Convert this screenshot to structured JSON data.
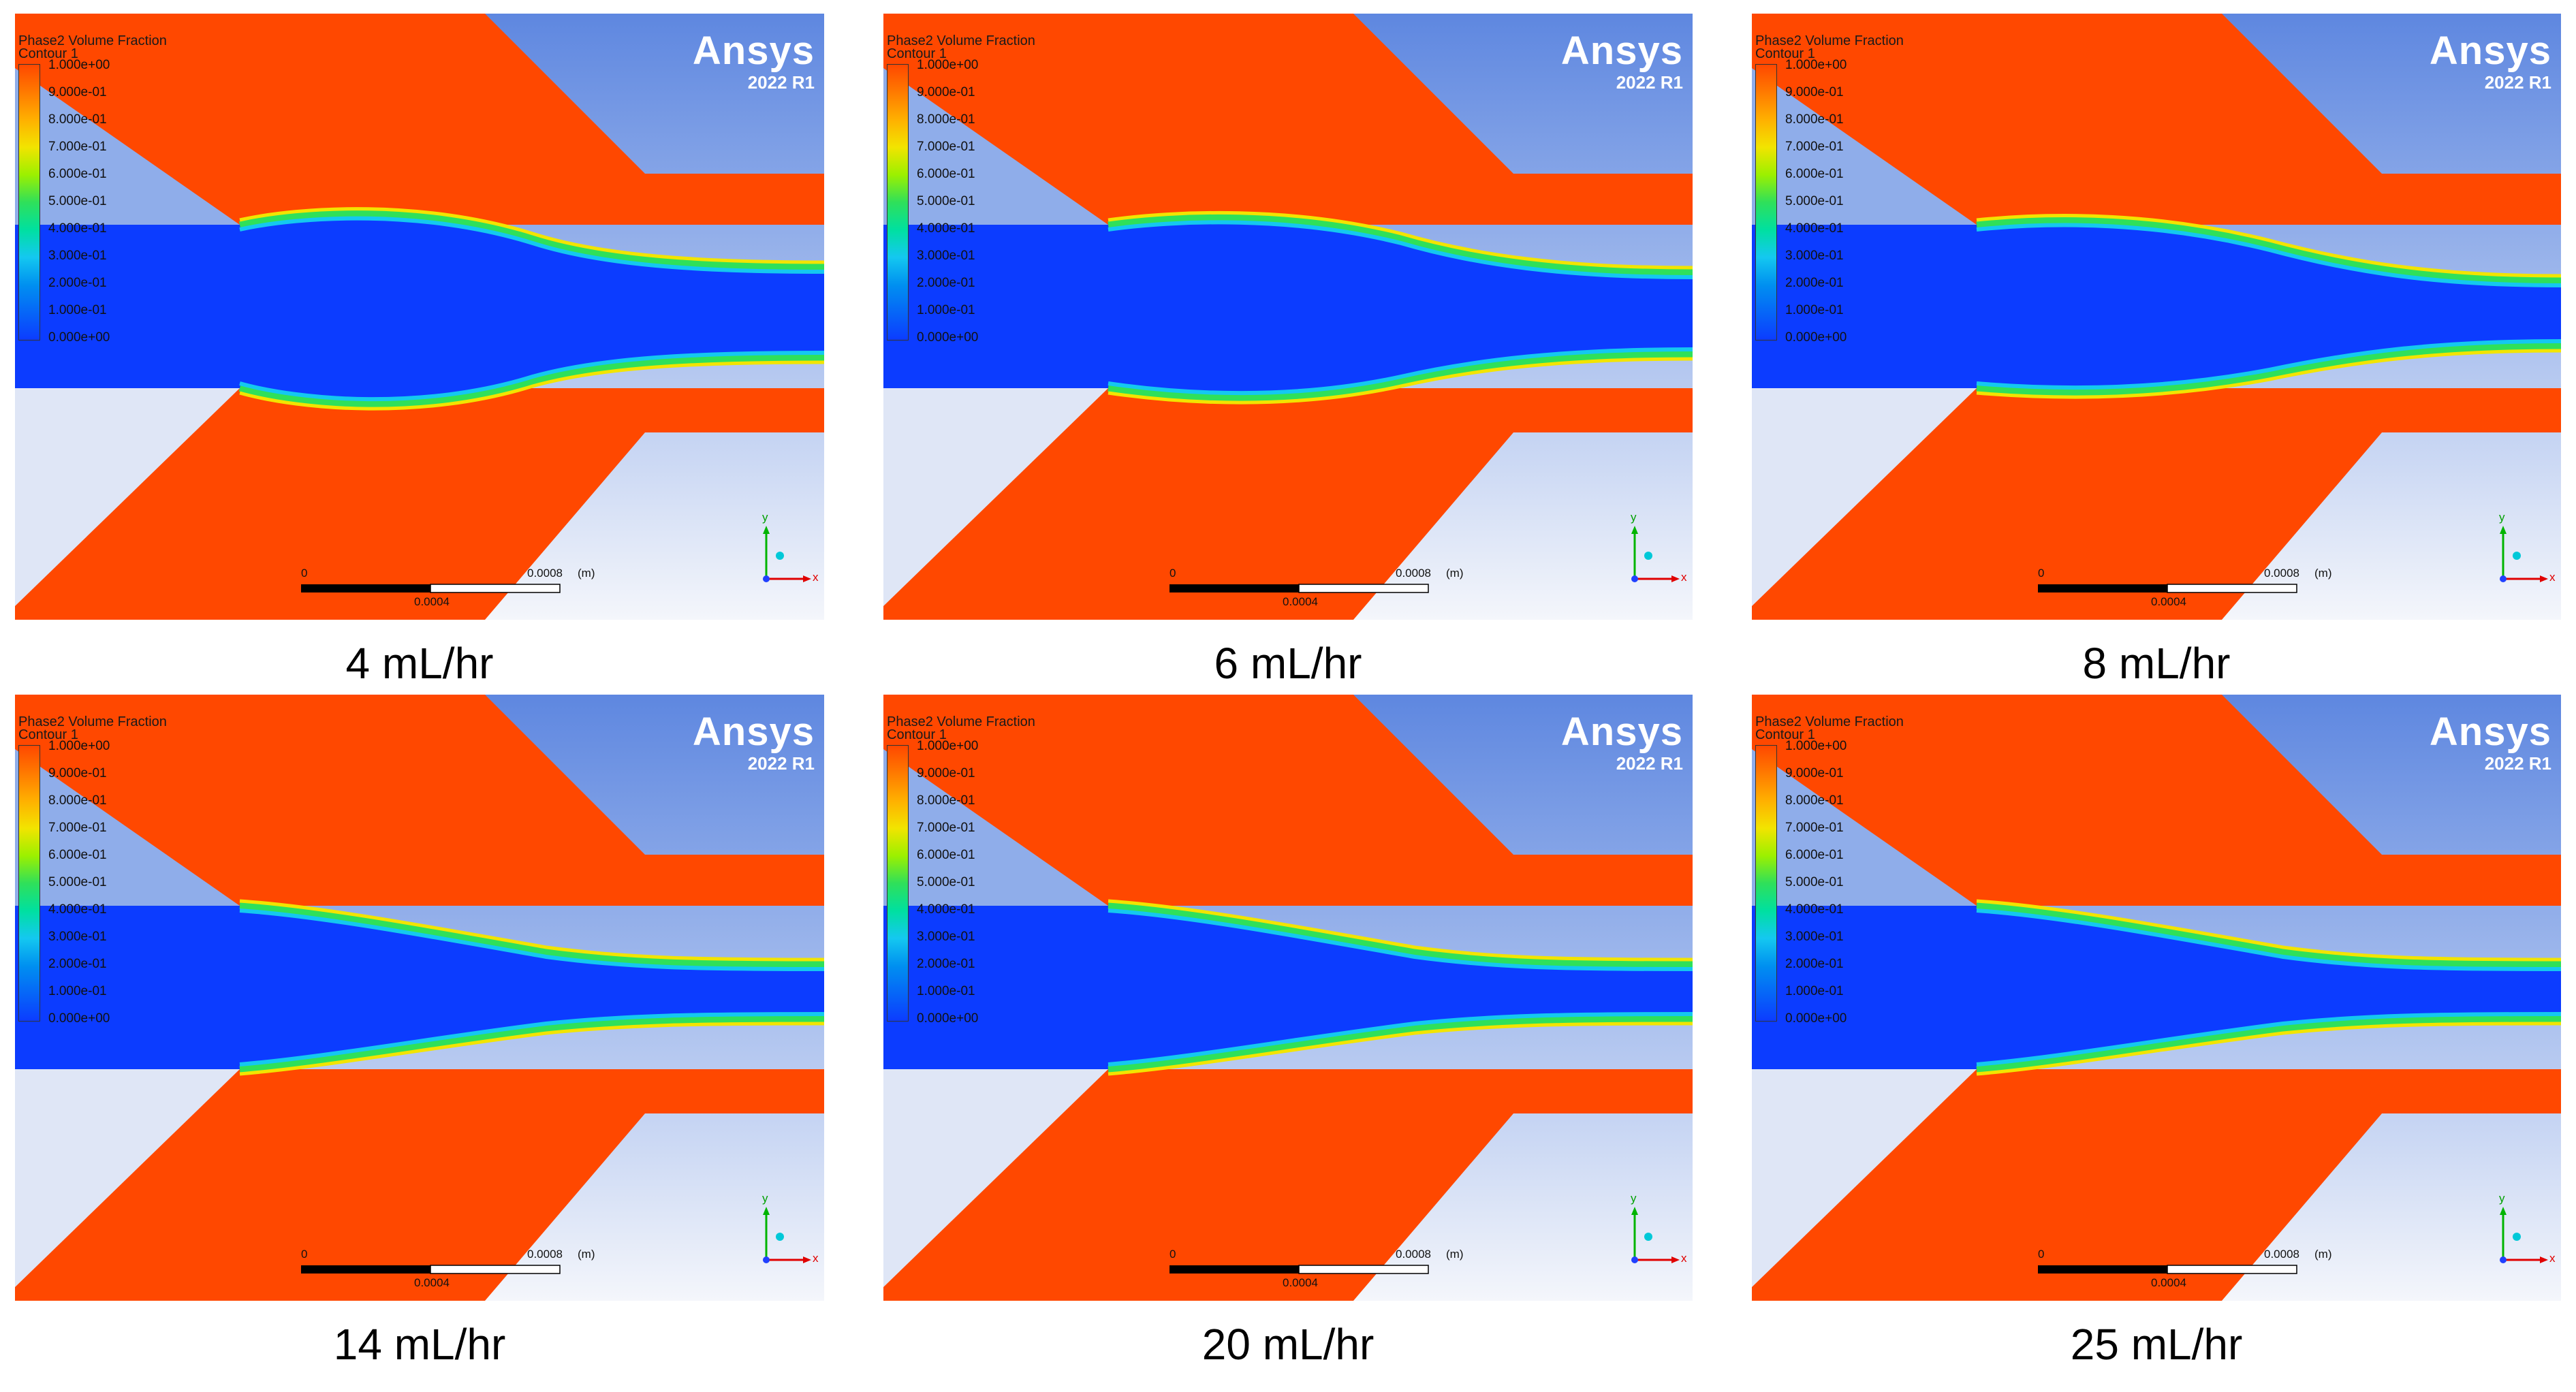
{
  "panels": [
    {
      "caption": "4 mL/hr",
      "shape": "bulge"
    },
    {
      "caption": "6 mL/hr",
      "shape": "mid"
    },
    {
      "caption": "8 mL/hr",
      "shape": "narrow"
    },
    {
      "caption": "14 mL/hr",
      "shape": "taper"
    },
    {
      "caption": "20 mL/hr",
      "shape": "taper"
    },
    {
      "caption": "25 mL/hr",
      "shape": "taper"
    }
  ],
  "contour": {
    "title": "Phase2 Volume Fraction",
    "subtitle": "Contour 1",
    "legend_ticks": [
      "1.000e+00",
      "9.000e-01",
      "8.000e-01",
      "7.000e-01",
      "6.000e-01",
      "5.000e-01",
      "4.000e-01",
      "3.000e-01",
      "2.000e-01",
      "1.000e-01",
      "0.000e+00"
    ]
  },
  "brand": {
    "logo": "Ansys",
    "version": "2022 R1"
  },
  "scale_bar": {
    "start": "0",
    "end": "0.0008",
    "unit": "(m)",
    "mid": "0.0004"
  },
  "axes": {
    "y": "y",
    "x": "x"
  },
  "colors": {
    "orange": "#ff4800",
    "blue": "#0c3cff",
    "sky_top": "#5e87e0",
    "sky_bottom": "#f2f5fb"
  }
}
